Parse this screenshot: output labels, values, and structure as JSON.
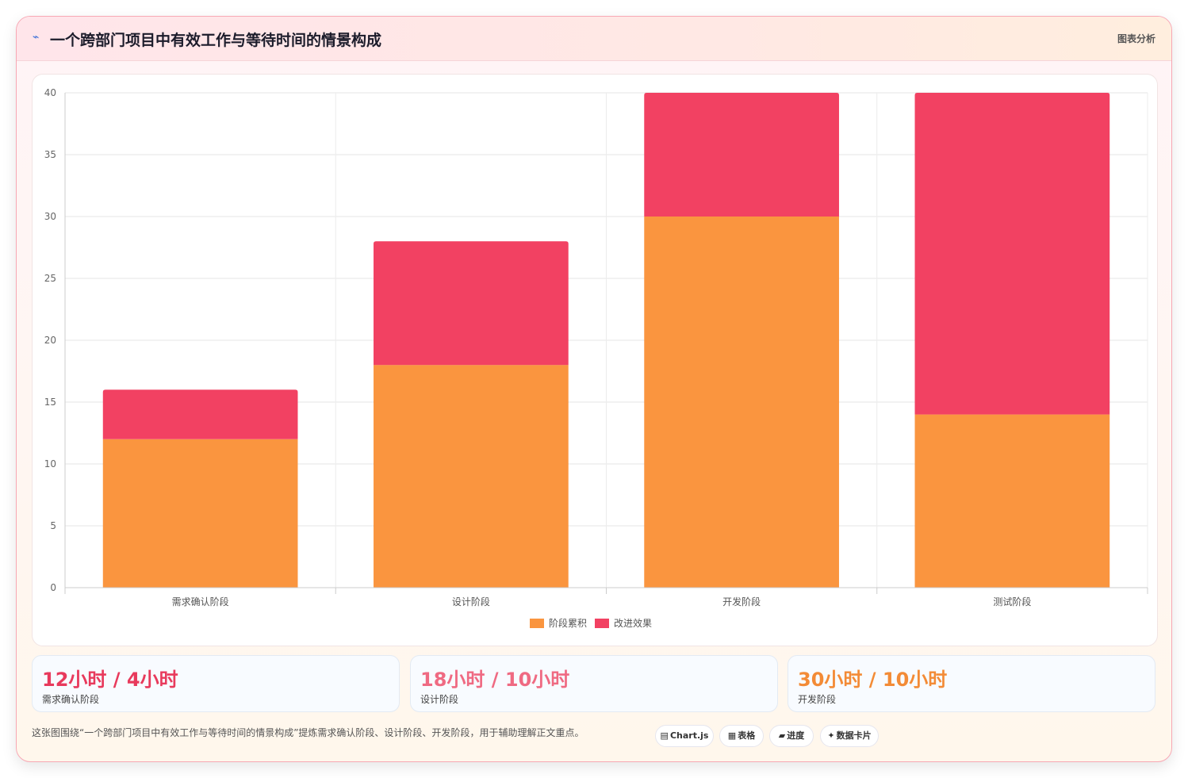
{
  "header": {
    "title": "一个跨部门项目中有效工作与等待时间的情景构成",
    "tag": "图表分析",
    "icon": "spark-icon"
  },
  "chart_data": {
    "type": "bar",
    "stacked": true,
    "categories": [
      "需求确认阶段",
      "设计阶段",
      "开发阶段",
      "测试阶段"
    ],
    "series": [
      {
        "name": "阶段累积",
        "values": [
          12,
          18,
          30,
          14
        ],
        "color": "#fa953f"
      },
      {
        "name": "改进效果",
        "values": [
          4,
          10,
          10,
          26
        ],
        "color": "#f24162"
      }
    ],
    "ylim": [
      0,
      40
    ],
    "yticks": [
      0,
      5,
      10,
      15,
      20,
      25,
      30,
      35,
      40
    ],
    "grid": true,
    "legend": "bottom"
  },
  "stats": [
    {
      "value": "12小时 / 4小时",
      "label": "需求确认阶段",
      "color": "#e83a5c"
    },
    {
      "value": "18小时 / 10小时",
      "label": "设计阶段",
      "color": "#ef6a82"
    },
    {
      "value": "30小时 / 10小时",
      "label": "开发阶段",
      "color": "#f38b36"
    }
  ],
  "footer": {
    "text": "这张图围绕“一个跨部门项目中有效工作与等待时间的情景构成”提炼需求确认阶段、设计阶段、开发阶段，用于辅助理解正文重点。",
    "pills": [
      {
        "icon": "▤",
        "label": "Chart.js"
      },
      {
        "icon": "▦",
        "label": "表格"
      },
      {
        "icon": "▰",
        "label": "进度"
      },
      {
        "icon": "✦",
        "label": "数据卡片"
      }
    ]
  }
}
